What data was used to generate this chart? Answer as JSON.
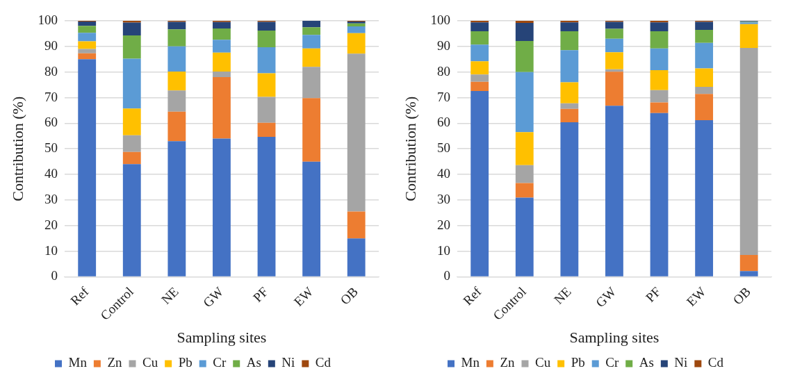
{
  "chart_data": [
    {
      "type": "bar",
      "stacked": true,
      "xlabel": "Sampling sites",
      "ylabel": "Contribution (%)",
      "categories": [
        "Ref",
        "Control",
        "NE",
        "GW",
        "PF",
        "EW",
        "OB"
      ],
      "ylim": [
        0,
        100
      ],
      "yticks": [
        0,
        10,
        20,
        30,
        40,
        50,
        60,
        70,
        80,
        90,
        100
      ],
      "grid": "y",
      "legend": "bottom",
      "series": [
        {
          "name": "Mn",
          "color": "#4472c4",
          "values": [
            85,
            44,
            53,
            54,
            54.7,
            45,
            15
          ]
        },
        {
          "name": "Zn",
          "color": "#ed7d31",
          "values": [
            2.3,
            4.8,
            11.5,
            24,
            5.5,
            24.8,
            10.5
          ]
        },
        {
          "name": "Cu",
          "color": "#a5a5a5",
          "values": [
            1.7,
            6.5,
            8.3,
            2.2,
            10.1,
            12.2,
            61.7
          ]
        },
        {
          "name": "Pb",
          "color": "#ffc000",
          "values": [
            3,
            10.4,
            7.4,
            7.4,
            9.2,
            7.2,
            8
          ]
        },
        {
          "name": "Cr",
          "color": "#5b9bd5",
          "values": [
            3.3,
            19.5,
            9.8,
            5,
            10.2,
            5.3,
            2.6
          ]
        },
        {
          "name": "As",
          "color": "#70ad47",
          "values": [
            2.7,
            9.1,
            6.7,
            4.4,
            6.5,
            3,
            1.2
          ]
        },
        {
          "name": "Ni",
          "color": "#264478",
          "values": [
            1.7,
            5,
            2.9,
            2.5,
            3.4,
            2.5,
            0.7
          ]
        },
        {
          "name": "Cd",
          "color": "#9e480e",
          "values": [
            0.3,
            0.7,
            0.4,
            0.5,
            0.4,
            0,
            0.3
          ]
        }
      ]
    },
    {
      "type": "bar",
      "stacked": true,
      "xlabel": "Sampling sites",
      "ylabel": "Contribution (%)",
      "categories": [
        "Ref",
        "Control",
        "NE",
        "GW",
        "PF",
        "EW",
        "OB"
      ],
      "ylim": [
        0,
        100
      ],
      "yticks": [
        0,
        10,
        20,
        30,
        40,
        50,
        60,
        70,
        80,
        90,
        100
      ],
      "grid": "y",
      "legend": "bottom",
      "series": [
        {
          "name": "Mn",
          "color": "#4472c4",
          "values": [
            72.6,
            30.9,
            60.4,
            66.8,
            64,
            61.2,
            2.2
          ]
        },
        {
          "name": "Zn",
          "color": "#ed7d31",
          "values": [
            3.6,
            5.7,
            5.2,
            13.3,
            4.1,
            10.2,
            6.3
          ]
        },
        {
          "name": "Cu",
          "color": "#a5a5a5",
          "values": [
            2.8,
            7,
            2.2,
            1,
            4.8,
            2.8,
            80.9
          ]
        },
        {
          "name": "Pb",
          "color": "#ffc000",
          "values": [
            5.2,
            12.9,
            8.2,
            6.6,
            7.8,
            7.2,
            9.3
          ]
        },
        {
          "name": "Cr",
          "color": "#5b9bd5",
          "values": [
            6.5,
            23.5,
            12.5,
            5.3,
            8.5,
            10,
            0.7
          ]
        },
        {
          "name": "As",
          "color": "#70ad47",
          "values": [
            5.2,
            12.1,
            7.4,
            3.9,
            6.7,
            5.1,
            0.2
          ]
        },
        {
          "name": "Ni",
          "color": "#264478",
          "values": [
            3.5,
            7.1,
            3.5,
            2.7,
            3.5,
            3.1,
            0.3
          ]
        },
        {
          "name": "Cd",
          "color": "#9e480e",
          "values": [
            0.6,
            0.8,
            0.6,
            0.4,
            0.6,
            0.4,
            null
          ]
        }
      ]
    }
  ]
}
